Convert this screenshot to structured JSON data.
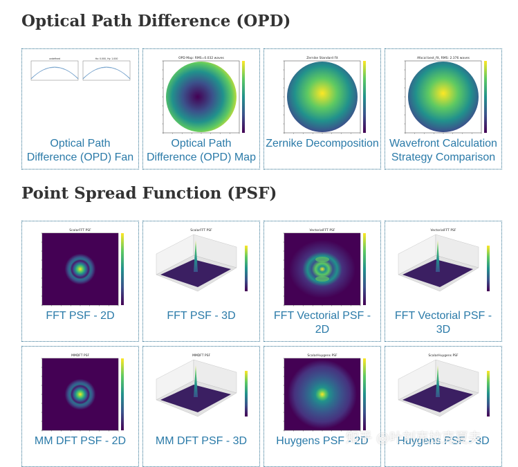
{
  "sections": [
    {
      "title": "Optical Path Difference (OPD)",
      "cards": [
        {
          "caption": "Optical Path Difference (OPD) Fan",
          "plot": "opd-fan",
          "plot_titles": [
            "Hx: 0.000, Hy: 1.000",
            "Hx: 0.000, Hy: 1.000"
          ]
        },
        {
          "caption": "Optical Path Difference (OPD) Map",
          "plot": "opd-map",
          "plot_titles": [
            "OPD Map: RMS=0.032 waves"
          ]
        },
        {
          "caption": "Zernike Decomposition",
          "plot": "zernike",
          "plot_titles": [
            "Zernike Standard Fit"
          ]
        },
        {
          "caption": "Wavefront Calculation Strategy Comparison",
          "plot": "wavefront",
          "plot_titles": [
            "Afocal best_fit, RMS: 2.376 waves"
          ]
        }
      ]
    },
    {
      "title": "Point Spread Function (PSF)",
      "cards": [
        {
          "caption": "FFT PSF - 2D",
          "plot": "psf-2d",
          "plot_titles": [
            "ScalarFFT PSF"
          ]
        },
        {
          "caption": "FFT PSF - 3D",
          "plot": "psf-3d",
          "plot_titles": [
            "ScalarFFT PSF"
          ]
        },
        {
          "caption": "FFT Vectorial PSF - 2D",
          "plot": "psf-vec-2d",
          "plot_titles": [
            "VectorialFFT PSF"
          ]
        },
        {
          "caption": "FFT Vectorial PSF - 3D",
          "plot": "psf-3d",
          "plot_titles": [
            "VectorialFFT PSF"
          ]
        },
        {
          "caption": "MM DFT PSF - 2D",
          "plot": "psf-2d",
          "plot_titles": [
            "MMDFT PSF"
          ]
        },
        {
          "caption": "MM DFT PSF - 3D",
          "plot": "psf-3d",
          "plot_titles": [
            "MMDFT PSF"
          ]
        },
        {
          "caption": "Huygens PSF - 2D",
          "plot": "psf-huygens-2d",
          "plot_titles": [
            "ScalarHuygens PSF"
          ]
        },
        {
          "caption": "Huygens PSF - 3D",
          "plot": "psf-3d",
          "plot_titles": [
            "ScalarHuygens PSF"
          ]
        }
      ]
    }
  ],
  "watermark": "知乎 @叶刘克拉克夏夫"
}
